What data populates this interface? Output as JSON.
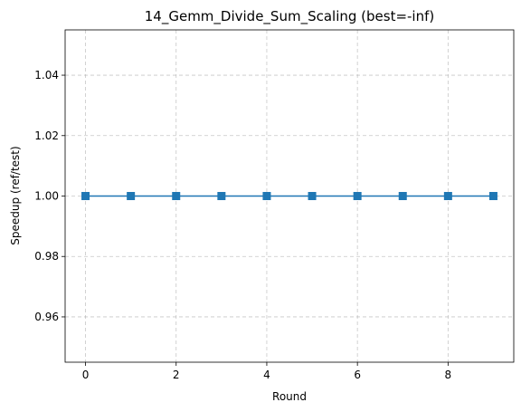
{
  "chart_data": {
    "type": "line",
    "title": "14_Gemm_Divide_Sum_Scaling (best=-inf)",
    "xlabel": "Round",
    "ylabel": "Speedup (ref/test)",
    "x": [
      0,
      1,
      2,
      3,
      4,
      5,
      6,
      7,
      8,
      9
    ],
    "series": [
      {
        "values": [
          1.0,
          1.0,
          1.0,
          1.0,
          1.0,
          1.0,
          1.0,
          1.0,
          1.0,
          1.0
        ],
        "color": "#1f77b4"
      }
    ],
    "xlim": [
      -0.45,
      9.45
    ],
    "ylim": [
      0.945,
      1.055
    ],
    "xticks": [
      0,
      2,
      4,
      6,
      8
    ],
    "xtick_labels": [
      "0",
      "2",
      "4",
      "6",
      "8"
    ],
    "yticks": [
      0.96,
      0.98,
      1.0,
      1.02,
      1.04
    ],
    "ytick_labels": [
      "0.96",
      "0.98",
      "1.00",
      "1.02",
      "1.04"
    ],
    "grid": true,
    "marker": "square"
  }
}
